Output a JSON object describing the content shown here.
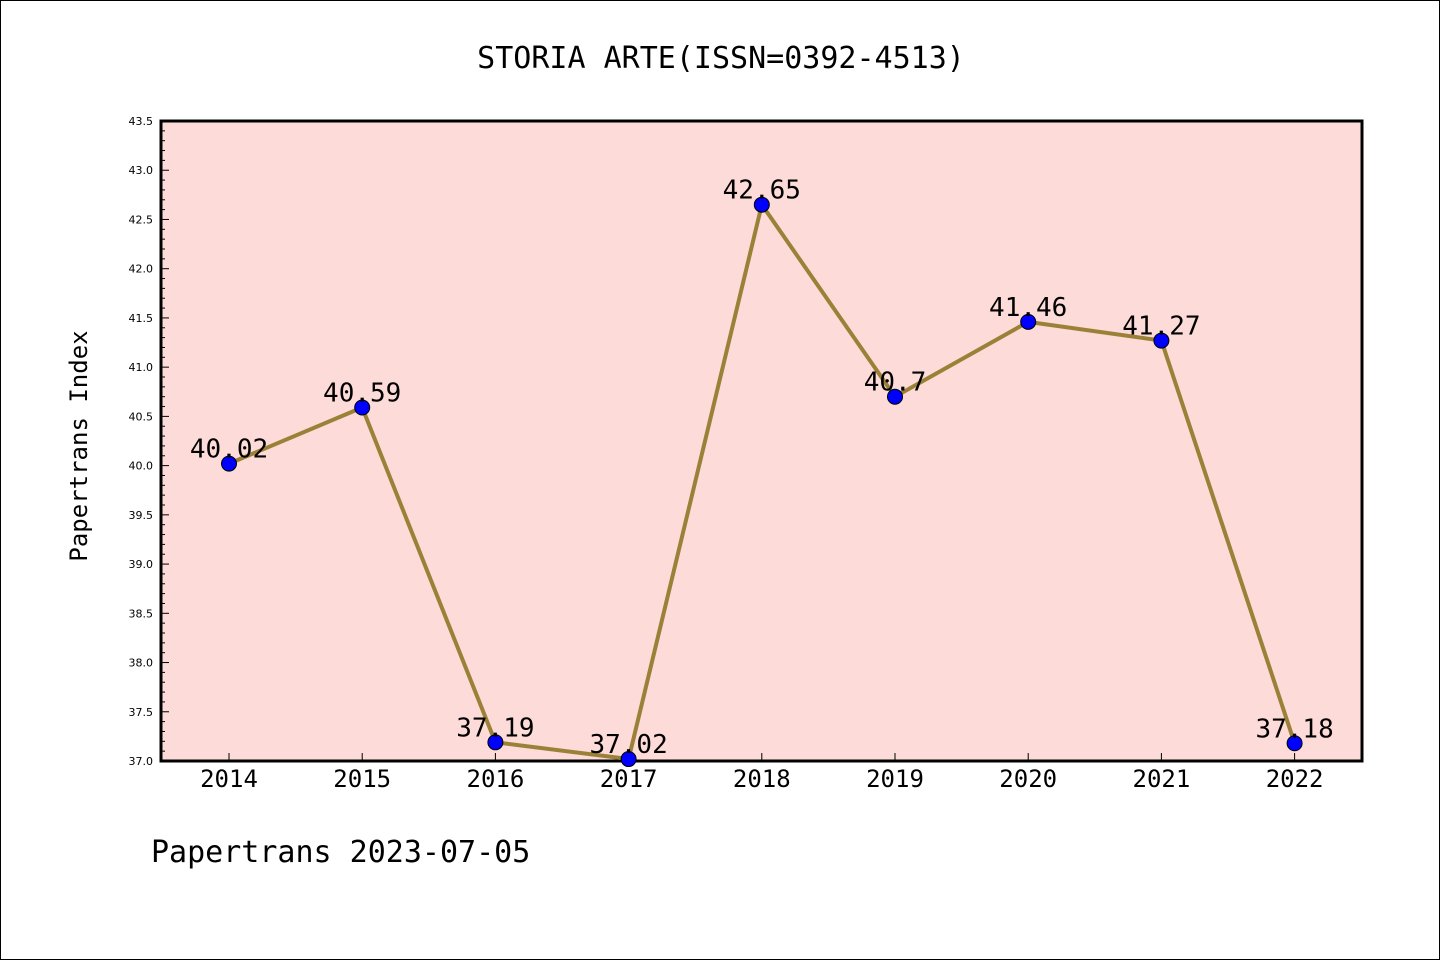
{
  "chart_data": {
    "type": "line",
    "title": "STORIA ARTE(ISSN=0392-4513)",
    "ylabel": "Papertrans Index",
    "xlabel": "",
    "categories": [
      "2014",
      "2015",
      "2016",
      "2017",
      "2018",
      "2019",
      "2020",
      "2021",
      "2022"
    ],
    "series": [
      {
        "values": [
          40.02,
          40.59,
          37.19,
          37.02,
          42.65,
          40.7,
          41.46,
          41.27,
          37.18
        ],
        "labels": [
          "40.02",
          "40.59",
          "37.19",
          "37.02",
          "42.65",
          "40.7",
          "41.46",
          "41.27",
          "37.18"
        ]
      }
    ],
    "ylim": [
      37.0,
      43.5
    ],
    "yticks": [
      "37.0",
      "37.5",
      "38.0",
      "38.5",
      "39.0",
      "39.5",
      "40.0",
      "40.5",
      "41.0",
      "41.5",
      "42.0",
      "42.5",
      "43.0",
      "43.5"
    ],
    "grid": false,
    "legend": "none",
    "colors": {
      "plot_background": "#fddbd8",
      "line": "#9b8138",
      "marker": "#0000ff",
      "marker_edge": "#000000"
    }
  },
  "footer": {
    "source_text": "Papertrans 2023-07-05"
  }
}
